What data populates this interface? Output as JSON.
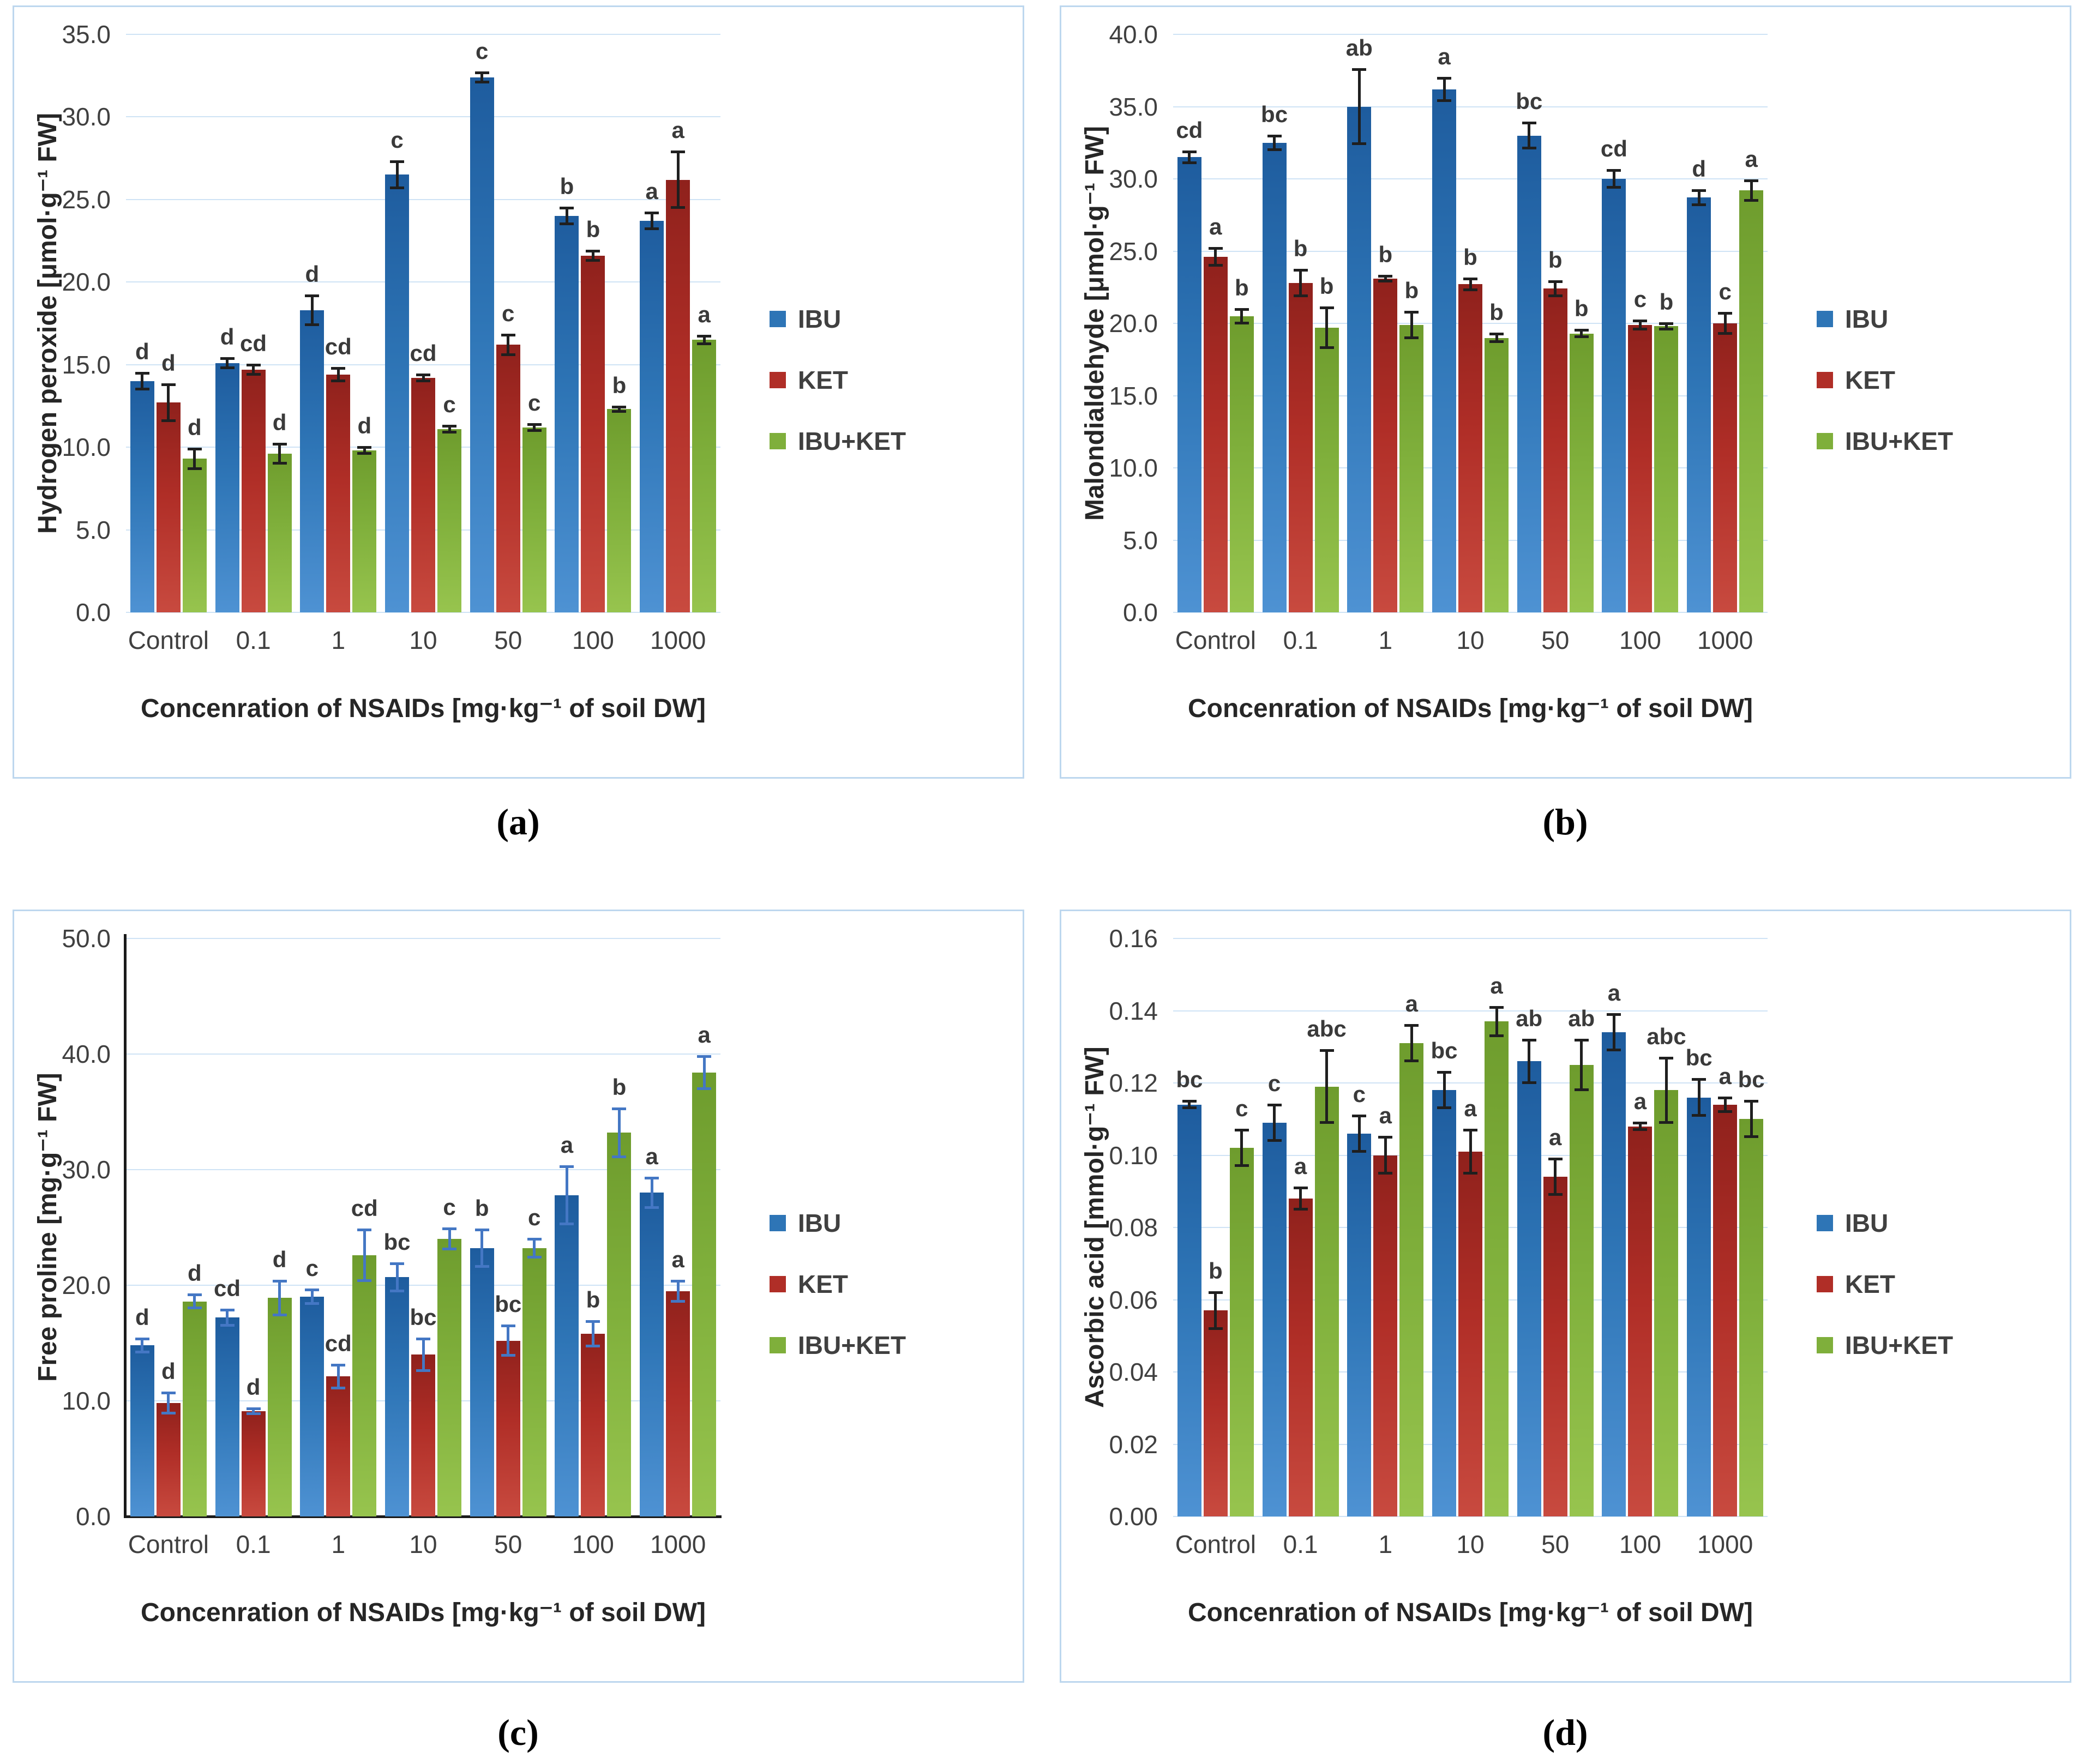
{
  "figure": {
    "panel_labels": [
      "(a)",
      "(b)",
      "(c)",
      "(d)"
    ],
    "x_axis_title": "Concenration of NSAIDs [mg·kg⁻¹ of soil DW]",
    "categories": [
      "Control",
      "0.1",
      "1",
      "10",
      "50",
      "100",
      "1000"
    ],
    "colors": {
      "panel_border": "#BDD7EE",
      "gridline": "#CFE3F5",
      "tick_text": "#404040",
      "error_bar_default": "#1f1f1f",
      "error_bar_panel_c": "#4477C4"
    },
    "legend": [
      {
        "label": "IBU",
        "color": "#2E75B6",
        "color_top": "#1E5C9E",
        "color_bottom": "#4E92D3"
      },
      {
        "label": "KET",
        "color": "#B02E27",
        "color_top": "#8F211C",
        "color_bottom": "#C84A3F"
      },
      {
        "label": "IBU+KET",
        "color": "#7FAF3B",
        "color_top": "#6E9C2D",
        "color_bottom": "#97C44E"
      }
    ]
  },
  "chart_data": [
    {
      "id": "a",
      "type": "bar",
      "title": "",
      "ylabel": "Hydrogen peroxide [μmol·g⁻¹ FW]",
      "xlabel": "Concenration of NSAIDs [mg·kg⁻¹ of soil DW]",
      "ylim": [
        0,
        35
      ],
      "yticks": [
        0,
        5,
        10,
        15,
        20,
        25,
        30,
        35
      ],
      "ytick_labels": [
        "0.0",
        "5.0",
        "10.0",
        "15.0",
        "20.0",
        "25.0",
        "30.0",
        "35.0"
      ],
      "categories": [
        "Control",
        "0.1",
        "1",
        "10",
        "50",
        "100",
        "1000"
      ],
      "grid": true,
      "black_axes": false,
      "error_color": "#1f1f1f",
      "legend_position": "right",
      "series": [
        {
          "name": "IBU",
          "values": [
            14.0,
            15.1,
            18.3,
            26.5,
            32.4,
            24.0,
            23.7
          ],
          "errors": [
            0.5,
            0.3,
            0.9,
            0.8,
            0.3,
            0.5,
            0.5
          ],
          "letters": [
            "d",
            "d",
            "d",
            "c",
            "c",
            "b",
            "a"
          ]
        },
        {
          "name": "KET",
          "values": [
            12.7,
            14.7,
            14.4,
            14.2,
            16.2,
            21.6,
            26.2
          ],
          "errors": [
            1.1,
            0.3,
            0.4,
            0.2,
            0.6,
            0.3,
            1.7
          ],
          "letters": [
            "d",
            "cd",
            "cd",
            "cd",
            "c",
            "b",
            "a"
          ]
        },
        {
          "name": "IBU+KET",
          "values": [
            9.3,
            9.6,
            9.8,
            11.1,
            11.2,
            12.3,
            16.5
          ],
          "errors": [
            0.6,
            0.6,
            0.2,
            0.2,
            0.2,
            0.15,
            0.25
          ],
          "letters": [
            "d",
            "d",
            "d",
            "c",
            "c",
            "b",
            "a"
          ]
        }
      ]
    },
    {
      "id": "b",
      "type": "bar",
      "title": "",
      "ylabel": "Malondialdehyde [μmol·g⁻¹ FW]",
      "xlabel": "Concenration of NSAIDs [mg·kg⁻¹ of soil DW]",
      "ylim": [
        0,
        40
      ],
      "yticks": [
        0,
        5,
        10,
        15,
        20,
        25,
        30,
        35,
        40
      ],
      "ytick_labels": [
        "0.0",
        "5.0",
        "10.0",
        "15.0",
        "20.0",
        "25.0",
        "30.0",
        "35.0",
        "40.0"
      ],
      "categories": [
        "Control",
        "0.1",
        "1",
        "10",
        "50",
        "100",
        "1000"
      ],
      "grid": true,
      "black_axes": false,
      "error_color": "#1f1f1f",
      "legend_position": "right",
      "series": [
        {
          "name": "IBU",
          "values": [
            31.5,
            32.5,
            35.0,
            36.2,
            33.0,
            30.0,
            28.7
          ],
          "errors": [
            0.4,
            0.5,
            2.6,
            0.8,
            0.9,
            0.6,
            0.5
          ],
          "letters": [
            "cd",
            "bc",
            "ab",
            "a",
            "bc",
            "cd",
            "d"
          ]
        },
        {
          "name": "KET",
          "values": [
            24.6,
            22.8,
            23.1,
            22.7,
            22.4,
            19.9,
            20.0
          ],
          "errors": [
            0.6,
            0.9,
            0.2,
            0.4,
            0.5,
            0.3,
            0.7
          ],
          "letters": [
            "a",
            "b",
            "b",
            "b",
            "b",
            "c",
            "c"
          ]
        },
        {
          "name": "IBU+KET",
          "values": [
            20.5,
            19.7,
            19.9,
            19.0,
            19.3,
            19.8,
            29.2
          ],
          "errors": [
            0.5,
            1.4,
            0.9,
            0.3,
            0.25,
            0.2,
            0.7
          ],
          "letters": [
            "b",
            "b",
            "b",
            "b",
            "b",
            "b",
            "a"
          ]
        }
      ]
    },
    {
      "id": "c",
      "type": "bar",
      "title": "",
      "ylabel": "Free proline [mg·g⁻¹ FW]",
      "xlabel": "Concenration of NSAIDs [mg·kg⁻¹ of soil DW]",
      "ylim": [
        0,
        50
      ],
      "yticks": [
        0,
        10,
        20,
        30,
        40,
        50
      ],
      "ytick_labels": [
        "0.0",
        "10.0",
        "20.0",
        "30.0",
        "40.0",
        "50.0"
      ],
      "categories": [
        "Control",
        "0.1",
        "1",
        "10",
        "50",
        "100",
        "1000"
      ],
      "grid": true,
      "black_axes": true,
      "error_color": "#4477C4",
      "legend_position": "right",
      "series": [
        {
          "name": "IBU",
          "values": [
            14.8,
            17.2,
            19.0,
            20.7,
            23.2,
            27.8,
            28.0
          ],
          "errors": [
            0.6,
            0.7,
            0.6,
            1.2,
            1.6,
            2.5,
            1.3
          ],
          "letters": [
            "d",
            "cd",
            "c",
            "bc",
            "b",
            "a",
            "a"
          ]
        },
        {
          "name": "KET",
          "values": [
            9.8,
            9.1,
            12.1,
            14.0,
            15.2,
            15.8,
            19.5
          ],
          "errors": [
            0.9,
            0.25,
            1.0,
            1.4,
            1.3,
            1.1,
            0.9
          ],
          "letters": [
            "d",
            "d",
            "cd",
            "bc",
            "bc",
            "b",
            "a"
          ]
        },
        {
          "name": "IBU+KET",
          "values": [
            18.6,
            18.9,
            22.6,
            24.0,
            23.2,
            33.2,
            38.4
          ],
          "errors": [
            0.6,
            1.5,
            2.2,
            0.9,
            0.8,
            2.1,
            1.4
          ],
          "letters": [
            "d",
            "d",
            "cd",
            "c",
            "c",
            "b",
            "a"
          ]
        }
      ]
    },
    {
      "id": "d",
      "type": "bar",
      "title": "",
      "ylabel": "Ascorbic acid [mmol·g⁻¹ FW]",
      "xlabel": "Concenration of NSAIDs [mg·kg⁻¹ of soil DW]",
      "ylim": [
        0,
        0.16
      ],
      "yticks": [
        0,
        0.02,
        0.04,
        0.06,
        0.08,
        0.1,
        0.12,
        0.14,
        0.16
      ],
      "ytick_labels": [
        "0.00",
        "0.02",
        "0.04",
        "0.06",
        "0.08",
        "0.10",
        "0.12",
        "0.14",
        "0.16"
      ],
      "categories": [
        "Control",
        "0.1",
        "1",
        "10",
        "50",
        "100",
        "1000"
      ],
      "grid": true,
      "black_axes": false,
      "error_color": "#1f1f1f",
      "legend_position": "right",
      "series": [
        {
          "name": "IBU",
          "values": [
            0.114,
            0.109,
            0.106,
            0.118,
            0.126,
            0.134,
            0.116
          ],
          "errors": [
            0.001,
            0.005,
            0.005,
            0.005,
            0.006,
            0.005,
            0.005
          ],
          "letters": [
            "bc",
            "c",
            "c",
            "bc",
            "ab",
            "a",
            "bc"
          ]
        },
        {
          "name": "KET",
          "values": [
            0.057,
            0.088,
            0.1,
            0.101,
            0.094,
            0.108,
            0.114
          ],
          "errors": [
            0.005,
            0.003,
            0.005,
            0.006,
            0.005,
            0.001,
            0.002
          ],
          "letters": [
            "b",
            "a",
            "a",
            "a",
            "a",
            "a",
            "a"
          ]
        },
        {
          "name": "IBU+KET",
          "values": [
            0.102,
            0.119,
            0.131,
            0.137,
            0.125,
            0.118,
            0.11
          ],
          "errors": [
            0.005,
            0.01,
            0.005,
            0.004,
            0.007,
            0.009,
            0.005
          ],
          "letters": [
            "c",
            "abc",
            "a",
            "a",
            "ab",
            "abc",
            "bc"
          ]
        }
      ]
    }
  ]
}
